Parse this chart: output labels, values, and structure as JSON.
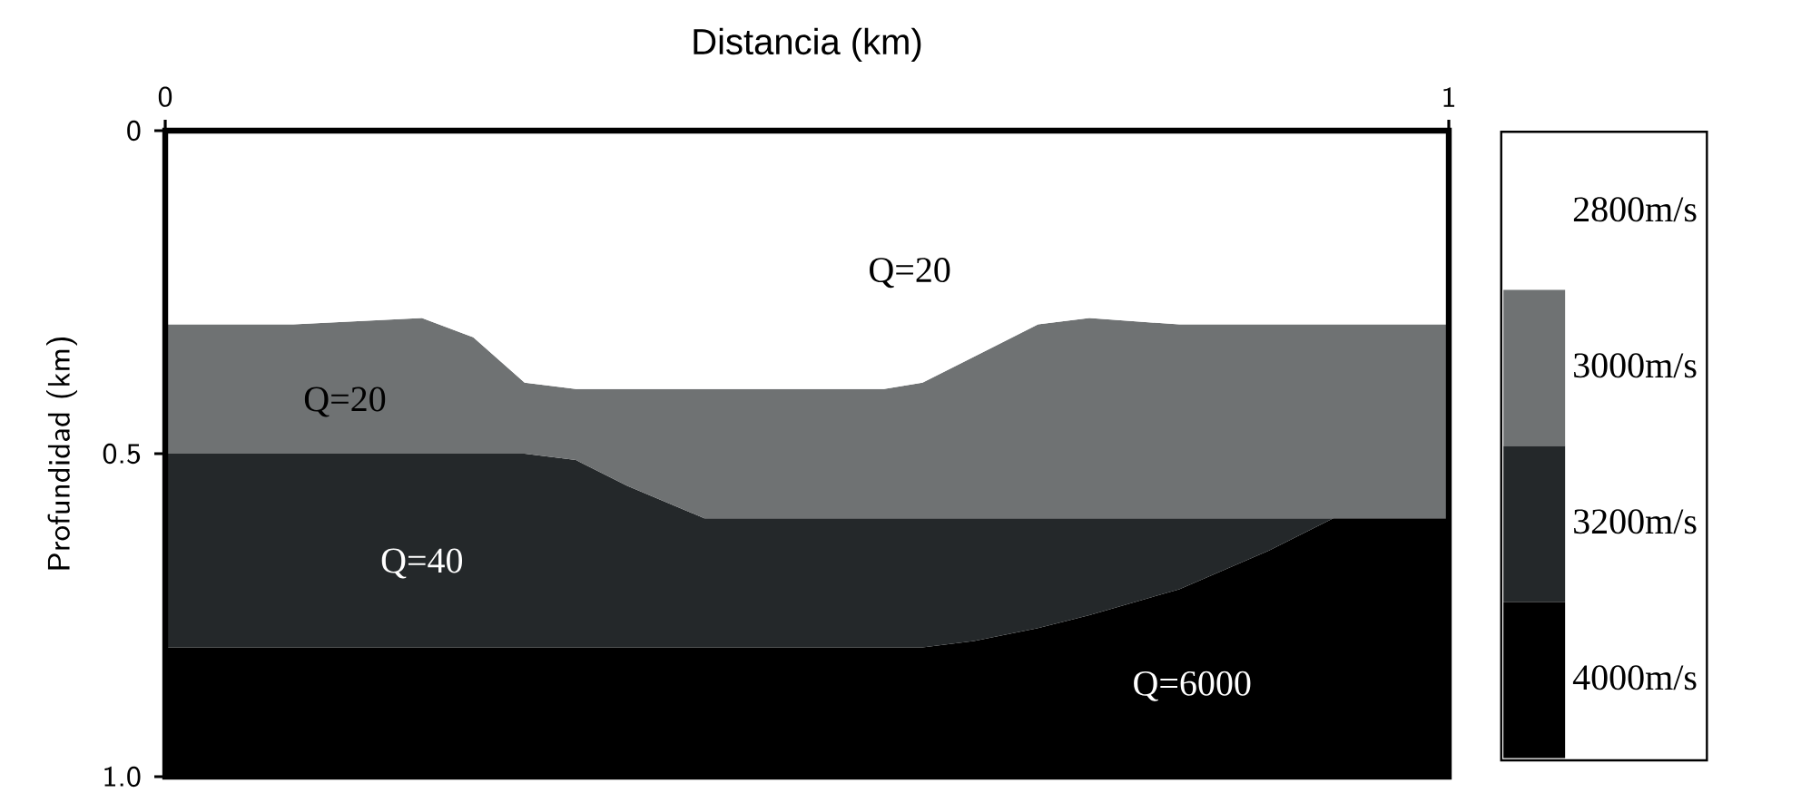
{
  "chart_data": {
    "type": "area",
    "stacked": true,
    "xlabel": "Distancia (km)",
    "ylabel": "Profundidad (km)",
    "xlim": [
      0,
      1
    ],
    "ylim": [
      1.0,
      0
    ],
    "xticks": [
      0,
      1
    ],
    "yticks": [
      0,
      0.5,
      {
        "value": 1.0,
        "label": "1.0"
      }
    ],
    "legend": "right",
    "x": [
      0,
      0.1,
      0.2,
      0.24,
      0.28,
      0.32,
      0.36,
      0.42,
      0.5,
      0.56,
      0.59,
      0.63,
      0.68,
      0.72,
      0.79,
      0.86,
      0.91,
      1
    ],
    "series": [
      {
        "name": "2800m/s",
        "color": "#ffffff",
        "values": [
          0.3,
          0.3,
          0.29,
          0.32,
          0.39,
          0.4,
          0.4,
          0.4,
          0.4,
          0.4,
          0.39,
          0.35,
          0.3,
          0.29,
          0.3,
          0.3,
          0.3,
          0.3
        ]
      },
      {
        "name": "3000m/s",
        "color": "#6f7273",
        "values": [
          0.2,
          0.2,
          0.21,
          0.18,
          0.11,
          0.11,
          0.15,
          0.2,
          0.2,
          0.2,
          0.21,
          0.25,
          0.3,
          0.31,
          0.3,
          0.3,
          0.3,
          0.3
        ]
      },
      {
        "name": "3200m/s",
        "color": "#24282a",
        "values": [
          0.3,
          0.3,
          0.3,
          0.3,
          0.3,
          0.29,
          0.25,
          0.2,
          0.2,
          0.2,
          0.2,
          0.19,
          0.17,
          0.15,
          0.11,
          0.05,
          0,
          0
        ]
      },
      {
        "name": "4000m/s",
        "color": "#000000",
        "values": [
          0.2,
          0.2,
          0.2,
          0.2,
          0.2,
          0.2,
          0.2,
          0.2,
          0.2,
          0.2,
          0.2,
          0.21,
          0.23,
          0.25,
          0.29,
          0.35,
          0.4,
          0.4
        ]
      }
    ],
    "annotations": [
      "Q=20",
      "Q=20",
      "Q=40",
      "Q=6000"
    ]
  }
}
